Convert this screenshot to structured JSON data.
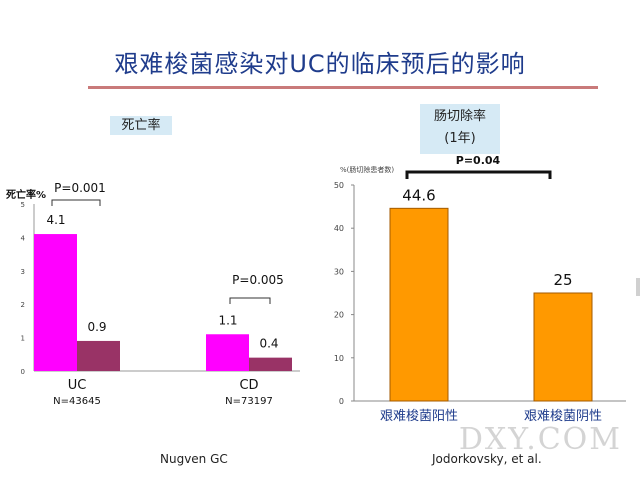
{
  "slide": {
    "title": "艰难梭菌感染对UC的临床预后的影响",
    "tag_left": "死亡率",
    "tag_right_line1": "肠切除率",
    "tag_right_line2": "(1年)",
    "credit_left": "Nugven  GC",
    "credit_right": "Jodorkovsky, et al.",
    "watermark": "DXY.COM"
  },
  "chart_data": [
    {
      "type": "bar",
      "ylabel": "死亡率%",
      "ylim": [
        0,
        5
      ],
      "yticks": [
        "0",
        "1",
        "2",
        "3",
        "4",
        "5"
      ],
      "groups": [
        {
          "name": "UC",
          "n_label": "N=43645",
          "values": [
            4.1,
            0.9
          ],
          "value_labels": [
            "4.1",
            "0.9"
          ],
          "p_label": "P=0.001"
        },
        {
          "name": "CD",
          "n_label": "N=73197",
          "values": [
            1.1,
            0.4
          ],
          "value_labels": [
            "1.1",
            "0.4"
          ],
          "p_label": "P=0.005"
        }
      ],
      "colors": [
        "#ff00ff",
        "#993366"
      ]
    },
    {
      "type": "bar",
      "ylabel": "%(肠切除患者数)",
      "ylim": [
        0,
        50
      ],
      "yticks": [
        "0",
        "10",
        "20",
        "30",
        "40",
        "50"
      ],
      "categories": [
        "艰难梭菌阳性",
        "艰难梭菌阴性"
      ],
      "values": [
        44.6,
        25
      ],
      "value_labels": [
        "44.6",
        "25"
      ],
      "p_label": "P=0.04",
      "colors": [
        "#ff9900",
        "#ff9900"
      ]
    }
  ]
}
